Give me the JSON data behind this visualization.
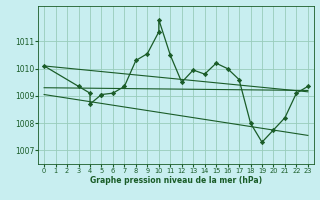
{
  "bg_color": "#c8eef0",
  "grid_color": "#99ccbb",
  "line_color": "#1a5c28",
  "marker_color": "#1a5c28",
  "xlabel": "Graphe pression niveau de la mer (hPa)",
  "xlabel_color": "#1a5c28",
  "xlim": [
    -0.5,
    23.5
  ],
  "ylim": [
    1006.5,
    1012.3
  ],
  "yticks": [
    1007,
    1008,
    1009,
    1010,
    1011
  ],
  "xticks": [
    0,
    1,
    2,
    3,
    4,
    5,
    6,
    7,
    8,
    9,
    10,
    11,
    12,
    13,
    14,
    15,
    16,
    17,
    18,
    19,
    20,
    21,
    22,
    23
  ],
  "main_x": [
    0,
    3,
    4,
    4,
    5,
    5,
    6,
    7,
    8,
    9,
    10,
    10,
    11,
    12,
    13,
    14,
    15,
    16,
    17,
    18,
    19,
    20,
    21,
    22,
    23
  ],
  "main_y": [
    1010.1,
    1009.35,
    1009.1,
    1008.7,
    1009.05,
    1009.05,
    1009.1,
    1009.35,
    1010.3,
    1010.55,
    1011.35,
    1011.8,
    1010.5,
    1009.5,
    1009.95,
    1009.8,
    1010.2,
    1010.0,
    1009.6,
    1008.0,
    1007.3,
    1007.75,
    1008.2,
    1009.1,
    1009.35
  ],
  "line1_x": [
    0,
    23
  ],
  "line1_y": [
    1010.1,
    1009.15
  ],
  "line2_x": [
    0,
    23
  ],
  "line2_y": [
    1009.3,
    1009.2
  ],
  "line3_x": [
    0,
    23
  ],
  "line3_y": [
    1009.05,
    1007.55
  ]
}
